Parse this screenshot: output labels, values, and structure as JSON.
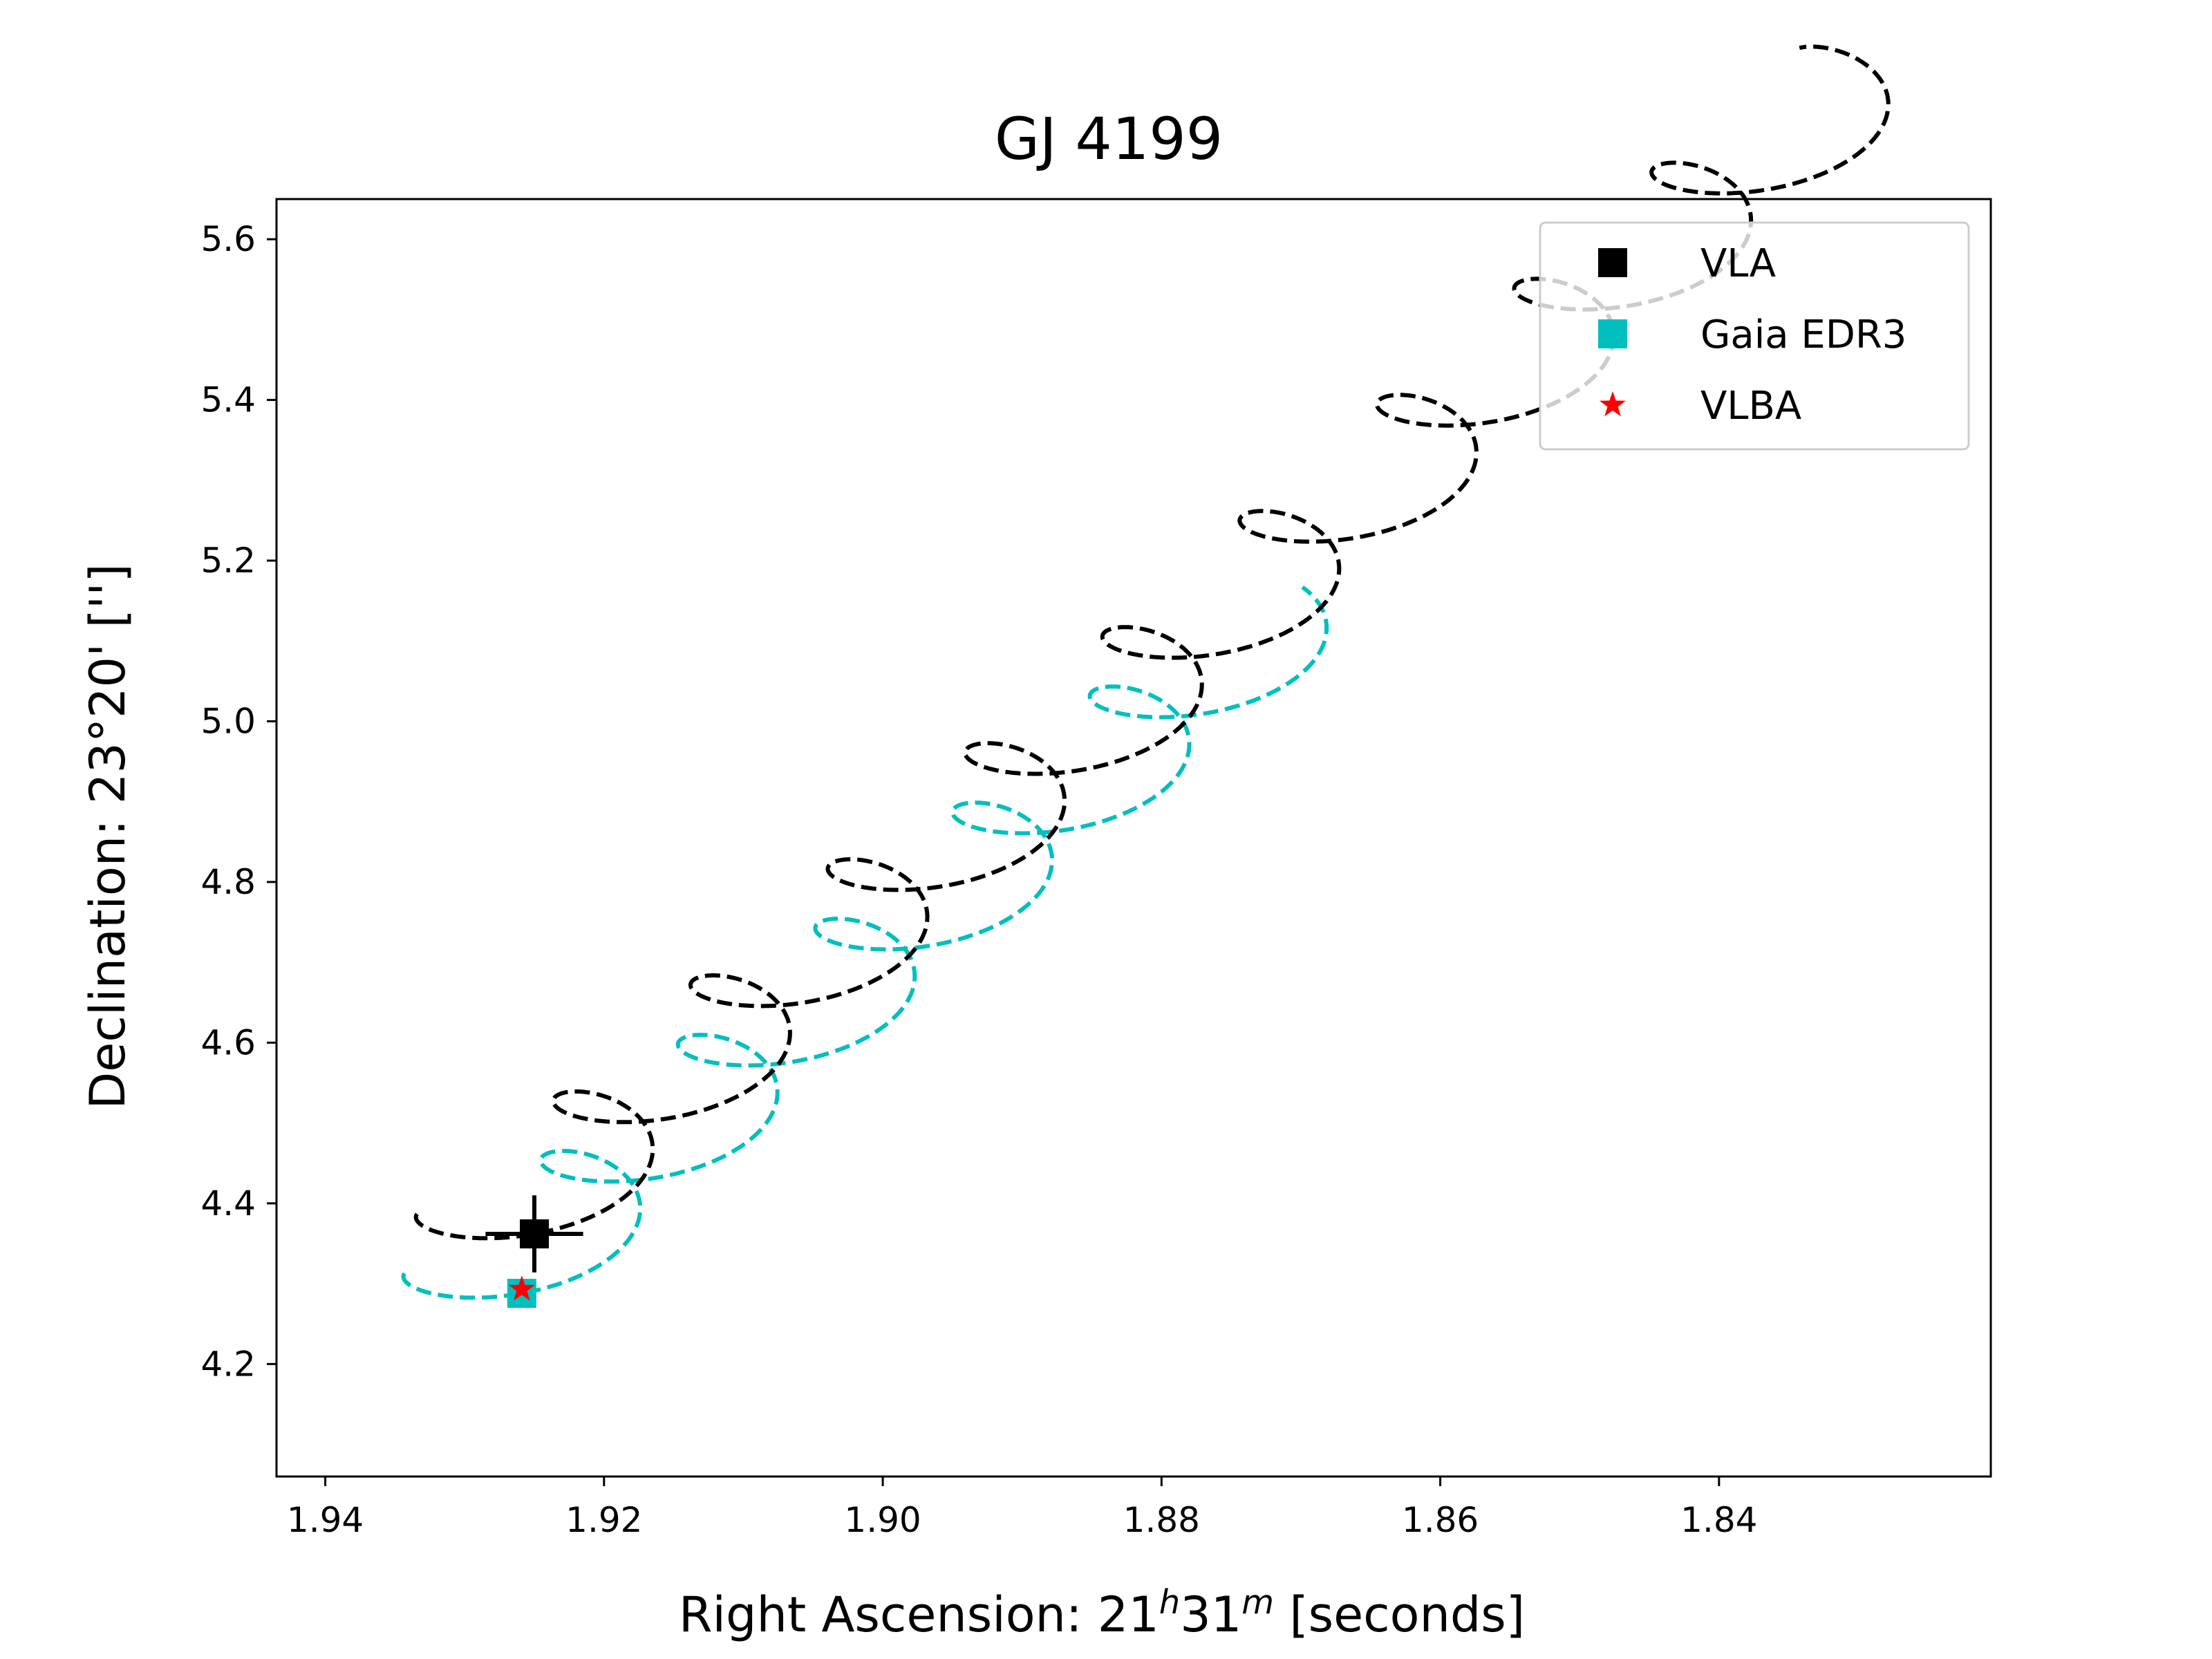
{
  "chart_data": {
    "type": "scatter",
    "title": "GJ 4199",
    "xlabel_main": "Right Ascension: 21",
    "xlabel_sup1": "h",
    "xlabel_mid": "31",
    "xlabel_sup2": "m",
    "xlabel_tail": " [seconds]",
    "ylabel": "Declination: 23°20' ['']",
    "xlim": [
      1.9435,
      1.8205
    ],
    "ylim": [
      4.06,
      5.65
    ],
    "x_axis_inverted": true,
    "grid": false,
    "legend_position": "top-right",
    "xticks": [
      1.94,
      1.92,
      1.9,
      1.88,
      1.86,
      1.84
    ],
    "xtick_labels": [
      "1.94",
      "1.92",
      "1.90",
      "1.88",
      "1.86",
      "1.84"
    ],
    "yticks": [
      4.2,
      4.4,
      4.6,
      4.8,
      5.0,
      5.2,
      5.4,
      5.6
    ],
    "ytick_labels": [
      "4.2",
      "4.4",
      "4.6",
      "4.8",
      "5.0",
      "5.2",
      "5.4",
      "5.6"
    ],
    "legend": [
      {
        "label": "VLA",
        "marker": "square",
        "color": "#000000"
      },
      {
        "label": "Gaia EDR3",
        "marker": "square",
        "color": "#00bfbf"
      },
      {
        "label": "VLBA",
        "marker": "star",
        "color": "#ff0000"
      }
    ],
    "series": [
      {
        "name": "VLA",
        "color": "#000000",
        "points": [
          {
            "x": 1.925,
            "y": 4.362,
            "xerr": 0.0035,
            "yerr": 0.048
          }
        ],
        "track": {
          "x0": 1.925,
          "y0": 4.362,
          "step_x": -0.00985,
          "step_y": 0.1445,
          "years": 9.8,
          "amp_x": 0.00582,
          "amp_y": 0.0498,
          "t_min": -0.32,
          "t_max": 9.62,
          "color": "#000000",
          "style": "dashed"
        }
      },
      {
        "name": "Gaia EDR3",
        "color": "#00bfbf",
        "points": [
          {
            "x": 1.9259,
            "y": 4.288
          }
        ],
        "track": {
          "x0": 1.9259,
          "y0": 4.288,
          "step_x": -0.00985,
          "step_y": 0.1445,
          "years": 5.7,
          "amp_x": 0.00582,
          "amp_y": 0.0498,
          "t_min": -0.32,
          "t_max": 5.43,
          "color": "#00bfbf",
          "style": "dashed"
        }
      },
      {
        "name": "VLBA",
        "color": "#ff0000",
        "points": [
          {
            "x": 1.9259,
            "y": 4.293
          }
        ]
      }
    ]
  }
}
